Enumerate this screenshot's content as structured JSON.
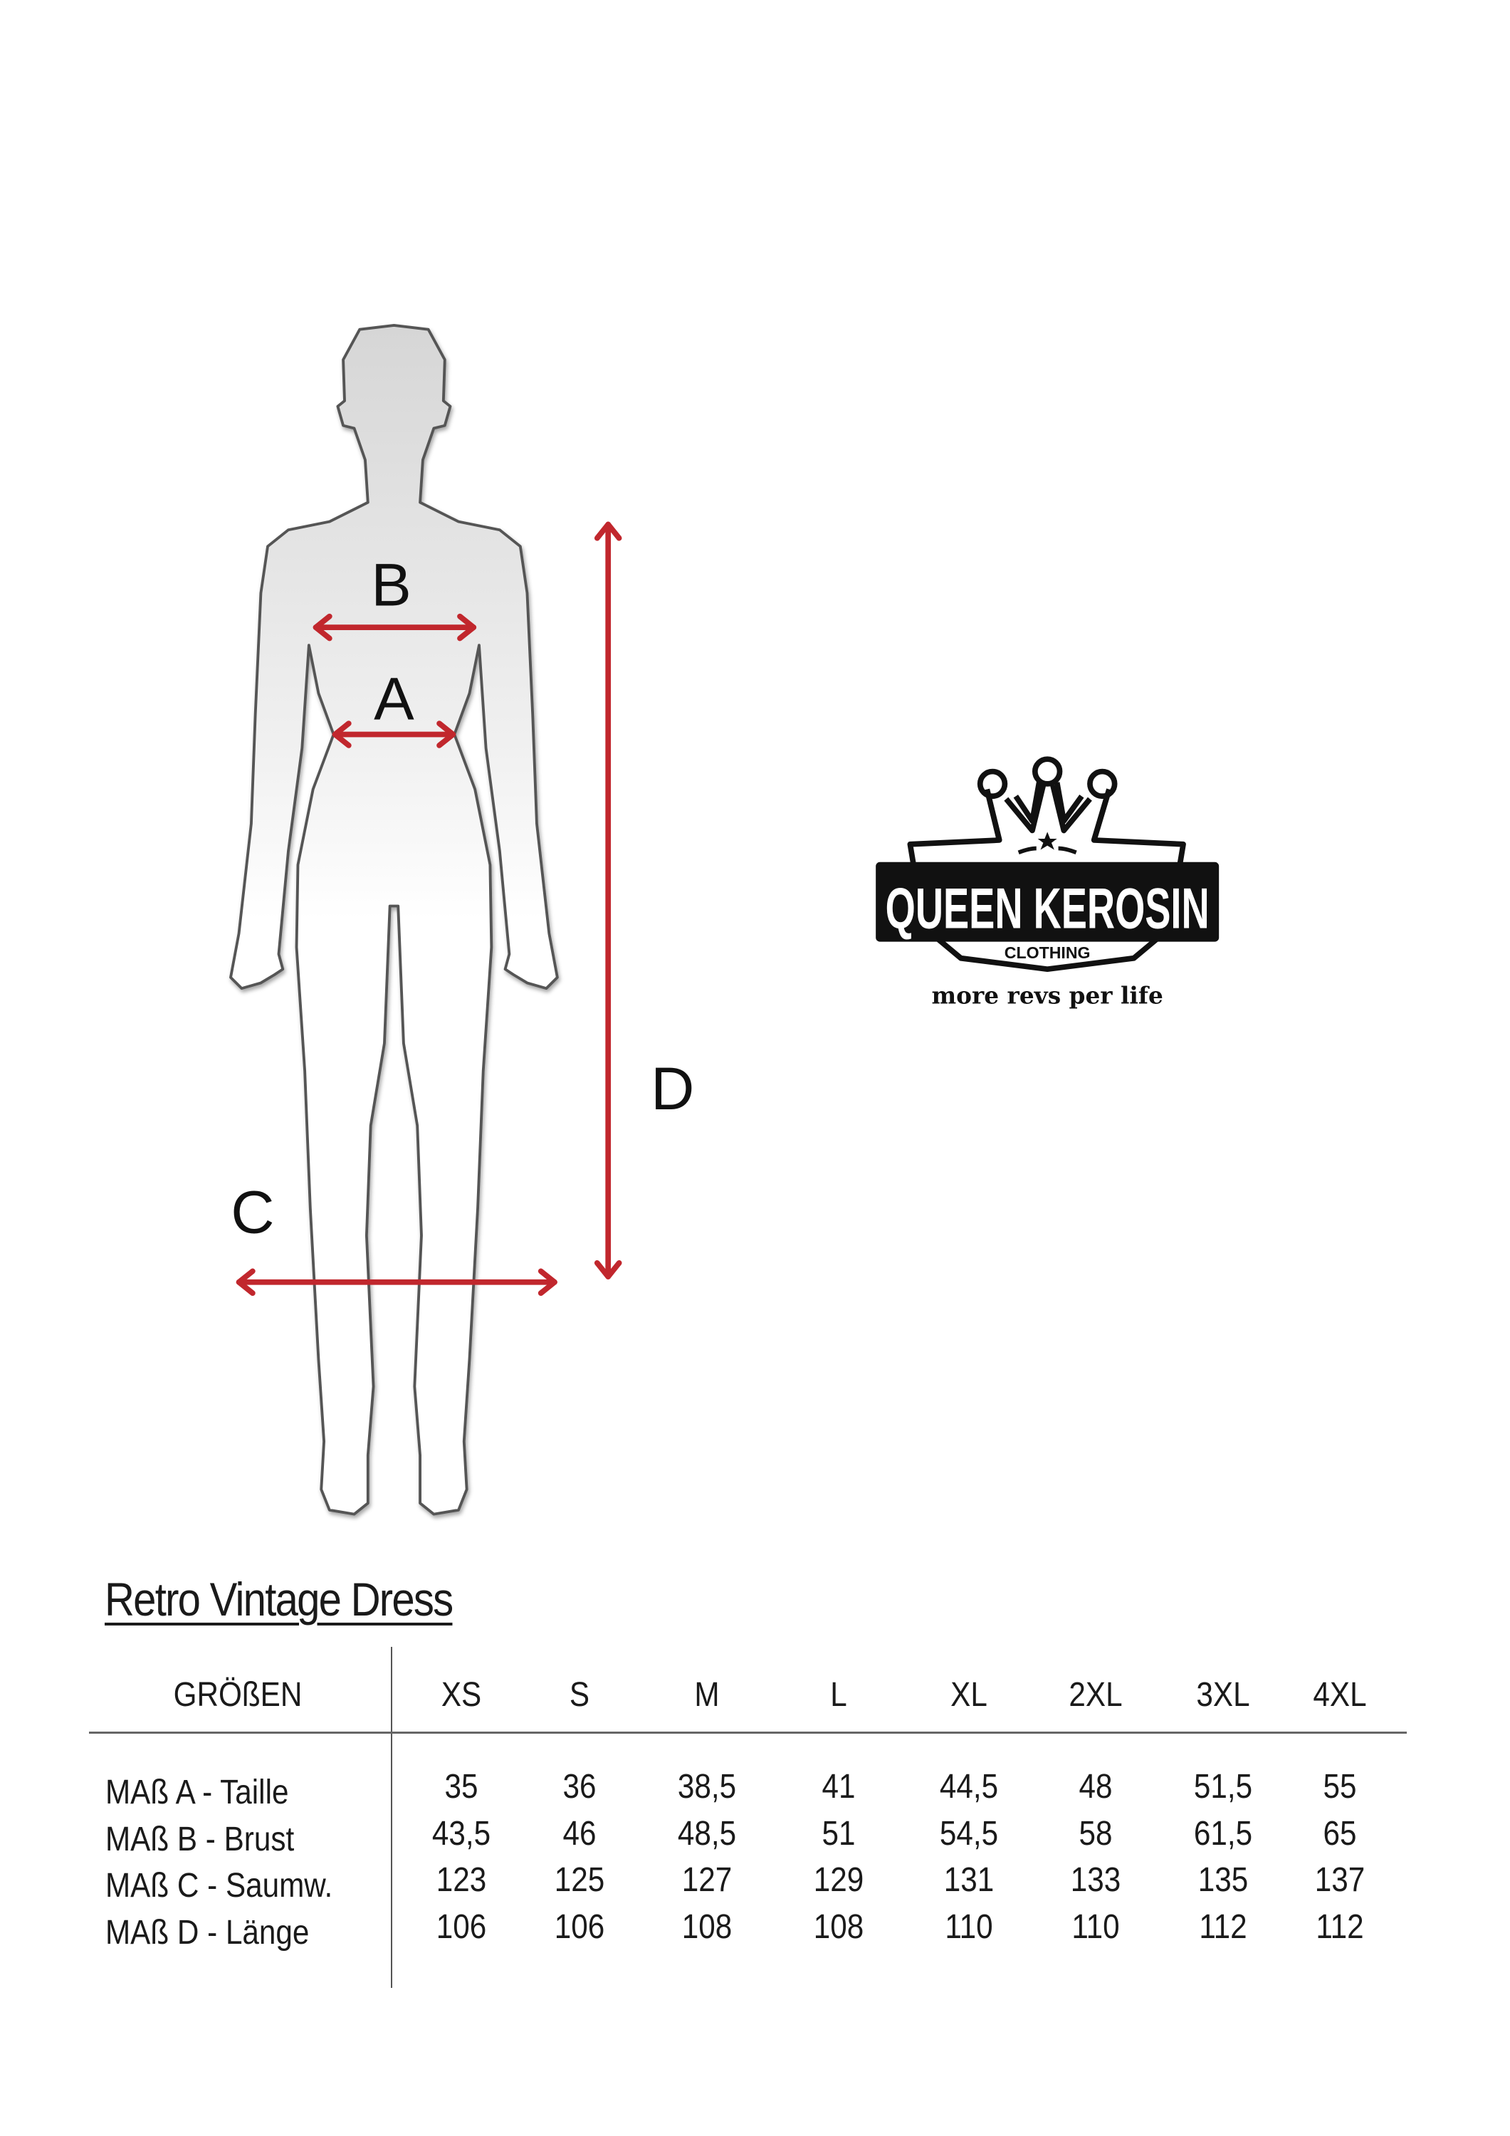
{
  "figure": {
    "labels": {
      "a": "A",
      "b": "B",
      "c": "C",
      "d": "D"
    },
    "arrow_color": "#c1272d"
  },
  "logo": {
    "brand": "QUEEN KEROSIN",
    "sub": "CLOTHING",
    "tagline": "more revs per life"
  },
  "table": {
    "title": "Retro Vintage Dress",
    "header_label": "GRÖßEN",
    "sizes": [
      "XS",
      "S",
      "M",
      "L",
      "XL",
      "2XL",
      "3XL",
      "4XL"
    ],
    "rows": [
      {
        "label": "MAß A - Taille",
        "values": [
          "35",
          "36",
          "38,5",
          "41",
          "44,5",
          "48",
          "51,5",
          "55"
        ]
      },
      {
        "label": "MAß B - Brust",
        "values": [
          "43,5",
          "46",
          "48,5",
          "51",
          "54,5",
          "58",
          "61,5",
          "65"
        ]
      },
      {
        "label": "MAß C - Saumw.",
        "values": [
          "123",
          "125",
          "127",
          "129",
          "131",
          "133",
          "135",
          "137"
        ]
      },
      {
        "label": "MAß D -  Länge",
        "values": [
          "106",
          "106",
          "108",
          "108",
          "110",
          "110",
          "112",
          "112"
        ]
      }
    ]
  }
}
